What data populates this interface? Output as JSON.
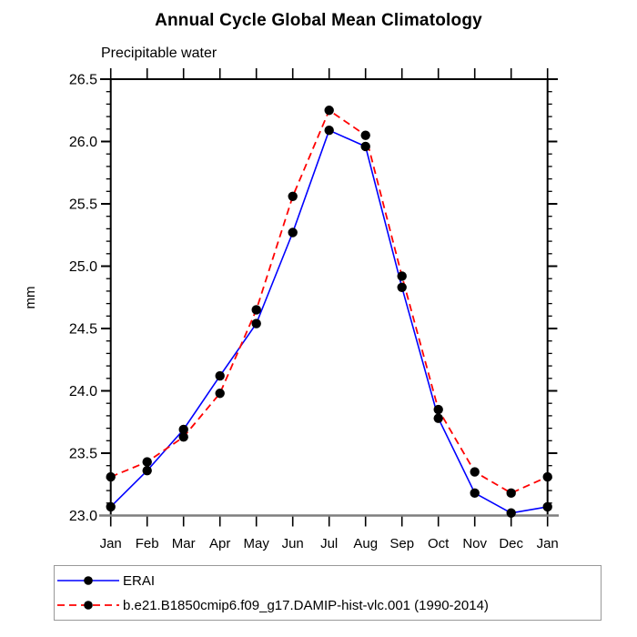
{
  "chart_data": {
    "type": "line",
    "title": "Annual Cycle Global Mean Climatology",
    "subtitle": "Precipitable water",
    "ylabel": "mm",
    "xlabel": "",
    "categories": [
      "Jan",
      "Feb",
      "Mar",
      "Apr",
      "May",
      "Jun",
      "Jul",
      "Aug",
      "Sep",
      "Oct",
      "Nov",
      "Dec",
      "Jan"
    ],
    "ylim": [
      23.0,
      26.5
    ],
    "ytick_major_interval": 0.5,
    "ytick_minor_interval": 0.1,
    "grid": false,
    "legend_position": "bottom-left",
    "series": [
      {
        "name": "ERAI",
        "color": "#0000ff",
        "line_style": "solid",
        "marker": "filled-circle",
        "marker_color": "#000000",
        "values": [
          23.07,
          23.36,
          23.69,
          24.12,
          24.54,
          25.27,
          26.09,
          25.96,
          24.83,
          23.78,
          23.18,
          23.02,
          23.07
        ]
      },
      {
        "name": "b.e21.B1850cmip6.f09_g17.DAMIP-hist-vlc.001 (1990-2014)",
        "color": "#ff0000",
        "line_style": "dashed",
        "marker": "filled-circle",
        "marker_color": "#000000",
        "values": [
          23.31,
          23.43,
          23.63,
          23.98,
          24.65,
          25.56,
          26.25,
          26.05,
          24.92,
          23.85,
          23.35,
          23.18,
          23.31
        ]
      }
    ]
  },
  "colors": {
    "background": "#ffffff",
    "axis": "#000000",
    "bottom_axis": "#7f7f7f",
    "legend_border": "#999999",
    "text": "#000000"
  }
}
